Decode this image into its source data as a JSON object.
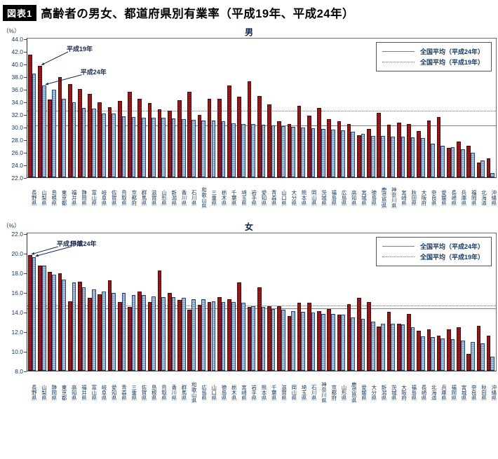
{
  "header": {
    "badge": "図表1",
    "title": "高齢者の男女、都道府県別有業率（平成19年、平成24年）"
  },
  "legend": {
    "solid_label": "全国平均（平成24年）",
    "dotted_label": "全国平均（平成19年）"
  },
  "annotations": {
    "h19": "平成19年",
    "h24": "平成24年"
  },
  "colors": {
    "h19_bar": "#9C1A1C",
    "h24_bar": "#A6C0DE",
    "bar_border": "#1F3350",
    "avg_line": "#7f7f7f",
    "label_text": "#17375E"
  },
  "chart_data": [
    {
      "type": "bar",
      "title": "男",
      "unit": "（%）",
      "ylim": [
        22.0,
        44.0
      ],
      "ytick_step": 2.0,
      "grid": false,
      "legend_position": "top-right",
      "national_avg_h24_solid": 30.1,
      "national_avg_h19_dotted": 32.4,
      "annotation_target_index": 1,
      "categories": [
        "長野県",
        "山梨県",
        "島根県",
        "東京都",
        "福井県",
        "静岡県",
        "富山県",
        "岐阜県",
        "佐賀県",
        "鳥取県",
        "京都府",
        "群馬県",
        "滋賀県",
        "山形県",
        "新潟県",
        "香川県",
        "石川県",
        "和歌山県",
        "三重県",
        "栃木県",
        "千葉県",
        "埼玉県",
        "岩手県",
        "愛知県",
        "青森県",
        "山口県",
        "大分県",
        "熊本県",
        "岡山県",
        "茨城県",
        "福島県",
        "広島県",
        "高知県",
        "宮城県",
        "徳島県",
        "鹿児島県",
        "神奈川県",
        "宮崎県",
        "秋田県",
        "大阪府",
        "奈良県",
        "愛媛県",
        "長崎県",
        "兵庫県",
        "福岡県",
        "北海道",
        "沖縄県"
      ],
      "series": [
        {
          "name": "平成19年",
          "values": [
            41.5,
            39.7,
            34.3,
            37.9,
            36.8,
            36.0,
            35.2,
            33.9,
            33.1,
            34.1,
            35.6,
            34.4,
            33.8,
            32.8,
            32.6,
            34.2,
            35.6,
            31.9,
            34.5,
            34.4,
            36.6,
            34.8,
            37.2,
            34.9,
            33.6,
            30.9,
            30.5,
            33.3,
            31.8,
            33.0,
            31.2,
            30.9,
            30.4,
            28.7,
            29.7,
            32.2,
            30.3,
            30.7,
            30.4,
            29.3,
            31.0,
            31.6,
            26.7,
            27.7,
            27.0,
            24.3,
            25.0
          ]
        },
        {
          "name": "平成24年",
          "values": [
            38.4,
            36.6,
            35.9,
            34.5,
            33.9,
            33.0,
            32.9,
            32.1,
            32.1,
            31.7,
            31.6,
            31.5,
            31.5,
            31.4,
            31.3,
            31.2,
            31.1,
            31.0,
            31.0,
            30.9,
            30.6,
            30.5,
            30.4,
            30.3,
            30.2,
            30.1,
            30.0,
            29.9,
            29.8,
            29.7,
            29.6,
            29.4,
            29.2,
            28.9,
            28.6,
            28.6,
            28.5,
            28.5,
            28.3,
            28.2,
            27.3,
            27.0,
            26.8,
            26.4,
            25.9,
            24.7,
            22.7
          ]
        }
      ]
    },
    {
      "type": "bar",
      "title": "女",
      "unit": "（%）",
      "ylim": [
        8.0,
        22.0
      ],
      "ytick_step": 2.0,
      "grid": false,
      "legend_position": "top-right",
      "national_avg_h24_solid": 14.3,
      "national_avg_h19_dotted": 14.6,
      "annotation_target_index": 0,
      "categories": [
        "長野県",
        "山梨県",
        "静岡県",
        "東京都",
        "高知県",
        "福井県",
        "富山県",
        "岐阜県",
        "愛知県",
        "青森県",
        "三重県",
        "佐賀県",
        "島根県",
        "鳥取県",
        "香川県",
        "群馬県",
        "和歌山県",
        "広島県",
        "山口県",
        "徳島県",
        "栃木県",
        "宮崎県",
        "岩手県",
        "熊本県",
        "千葉県",
        "滋賀県",
        "岡山県",
        "埼玉県",
        "石川県",
        "神奈川県",
        "京都府",
        "山形県",
        "鹿児島県",
        "愛媛県",
        "大分県",
        "新潟県",
        "茨城県",
        "大阪府",
        "福島県",
        "長崎県",
        "北海道",
        "兵庫県",
        "福岡県",
        "宮城県",
        "奈良県",
        "秋田県",
        "沖縄県"
      ],
      "series": [
        {
          "name": "平成19年",
          "values": [
            19.8,
            18.7,
            18.1,
            17.9,
            15.1,
            17.1,
            15.4,
            15.8,
            17.2,
            15.0,
            14.5,
            16.1,
            15.0,
            18.2,
            15.9,
            15.2,
            14.2,
            14.7,
            15.0,
            15.5,
            15.3,
            17.0,
            14.5,
            16.5,
            14.6,
            14.6,
            13.6,
            14.9,
            14.9,
            14.1,
            14.3,
            13.7,
            14.8,
            15.4,
            15.0,
            12.5,
            14.0,
            12.8,
            13.8,
            12.1,
            12.2,
            11.6,
            12.2,
            12.4,
            9.7,
            12.6,
            11.6
          ]
        },
        {
          "name": "平成24年",
          "values": [
            19.6,
            18.7,
            17.8,
            17.3,
            17.0,
            16.5,
            16.3,
            16.1,
            15.9,
            15.9,
            15.7,
            15.7,
            15.6,
            15.5,
            15.5,
            15.4,
            15.3,
            15.3,
            15.1,
            15.0,
            15.0,
            14.9,
            14.6,
            14.5,
            14.3,
            14.2,
            14.1,
            14.0,
            13.9,
            13.8,
            13.8,
            13.7,
            13.4,
            13.3,
            13.0,
            12.8,
            12.8,
            12.7,
            12.4,
            11.5,
            11.4,
            11.3,
            11.2,
            11.1,
            10.9,
            10.8,
            9.4
          ]
        }
      ]
    }
  ]
}
